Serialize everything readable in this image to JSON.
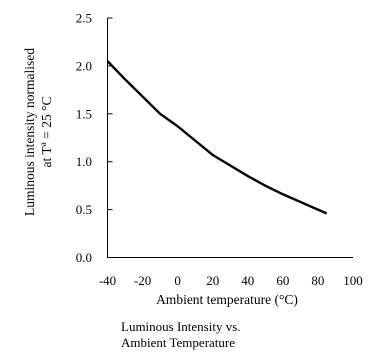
{
  "chart_data": {
    "type": "line",
    "title": "",
    "xlabel": "Ambient temperature (°C)",
    "ylabel_lines": [
      "Luminous intensity normalised",
      "at T",
      "a",
      " = 25 °C"
    ],
    "xlim": [
      -40,
      100
    ],
    "ylim": [
      0.0,
      2.5
    ],
    "x_ticks": [
      -40,
      -20,
      0,
      20,
      40,
      60,
      80,
      100
    ],
    "x_tick_labels": [
      "-40",
      "-20",
      "0",
      "20",
      "40",
      "60",
      "80",
      "100"
    ],
    "y_ticks": [
      0.0,
      0.5,
      1.0,
      1.5,
      2.0,
      2.5
    ],
    "y_tick_labels": [
      "0.0",
      "0.5",
      "1.0",
      "1.5",
      "2.0",
      "2.5"
    ],
    "grid": false,
    "series": [
      {
        "x": [
          -40,
          -30,
          -20,
          -10,
          0,
          10,
          20,
          30,
          40,
          50,
          60,
          70,
          80,
          85
        ],
        "y": [
          2.05,
          1.86,
          1.68,
          1.5,
          1.37,
          1.22,
          1.07,
          0.96,
          0.85,
          0.75,
          0.66,
          0.58,
          0.5,
          0.46
        ],
        "color": "#000000"
      }
    ]
  },
  "caption": {
    "line1": "Luminous Intensity vs.",
    "line2": "Ambient Temperature"
  }
}
